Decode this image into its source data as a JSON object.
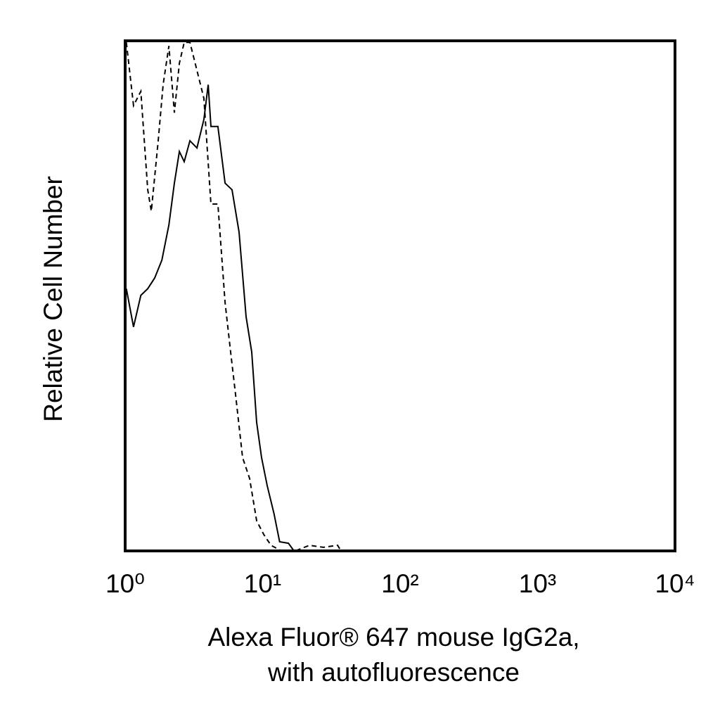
{
  "chart_data": {
    "type": "line",
    "ylabel": "Relative Cell Number",
    "xlabel": [
      "Alexa Fluor® 647 mouse IgG2a,",
      "with autofluorescence"
    ],
    "xscale": "log",
    "xlim": [
      1,
      10000
    ],
    "xticks": [
      {
        "value": 1,
        "label": "10⁰"
      },
      {
        "value": 10,
        "label": "10¹"
      },
      {
        "value": 100,
        "label": "10²"
      },
      {
        "value": 1000,
        "label": "10³"
      },
      {
        "value": 10000,
        "label": "10⁴"
      }
    ],
    "ylim": [
      0,
      100
    ],
    "grid": false,
    "series": [
      {
        "color": "#000000",
        "style": "solid",
        "x": [
          1.02,
          1.15,
          1.3,
          1.46,
          1.64,
          1.85,
          2.08,
          2.28,
          2.48,
          2.69,
          2.96,
          3.33,
          3.74,
          4.02,
          4.21,
          4.73,
          5.33,
          5.99,
          6.74,
          7.58,
          8.33,
          9.05,
          9.82,
          10.8,
          12.1,
          13.3,
          15.4,
          16.9,
          19.5
        ],
        "values": [
          51.4,
          43.9,
          50.1,
          51.4,
          53.5,
          57.0,
          63.9,
          72.1,
          78.3,
          76.3,
          80.4,
          79.0,
          84.6,
          91.4,
          83.2,
          83.2,
          72.1,
          70.8,
          62.5,
          45.9,
          39.0,
          25.2,
          18.3,
          12.8,
          7.3,
          1.8,
          1.5,
          0,
          0
        ]
      },
      {
        "color": "#000000",
        "style": "dashed",
        "x": [
          1.02,
          1.15,
          1.3,
          1.46,
          1.55,
          1.74,
          1.89,
          2.08,
          2.28,
          2.48,
          2.69,
          2.96,
          3.33,
          3.74,
          4.21,
          4.73,
          5.33,
          5.85,
          6.35,
          7.15,
          8.04,
          9.05,
          10.2,
          11.5,
          13.7,
          17.3,
          21.9,
          27.7,
          35.1,
          37.2
        ],
        "values": [
          99.7,
          87.3,
          90.1,
          70.8,
          66.6,
          80.4,
          91.4,
          99.0,
          85.9,
          95.6,
          99.7,
          99.7,
          94.2,
          88.7,
          68.0,
          68.0,
          48.7,
          39.0,
          30.8,
          18.3,
          14.2,
          5.9,
          3.2,
          1.1,
          0,
          0,
          1.1,
          0.7,
          1.1,
          0
        ]
      }
    ]
  }
}
